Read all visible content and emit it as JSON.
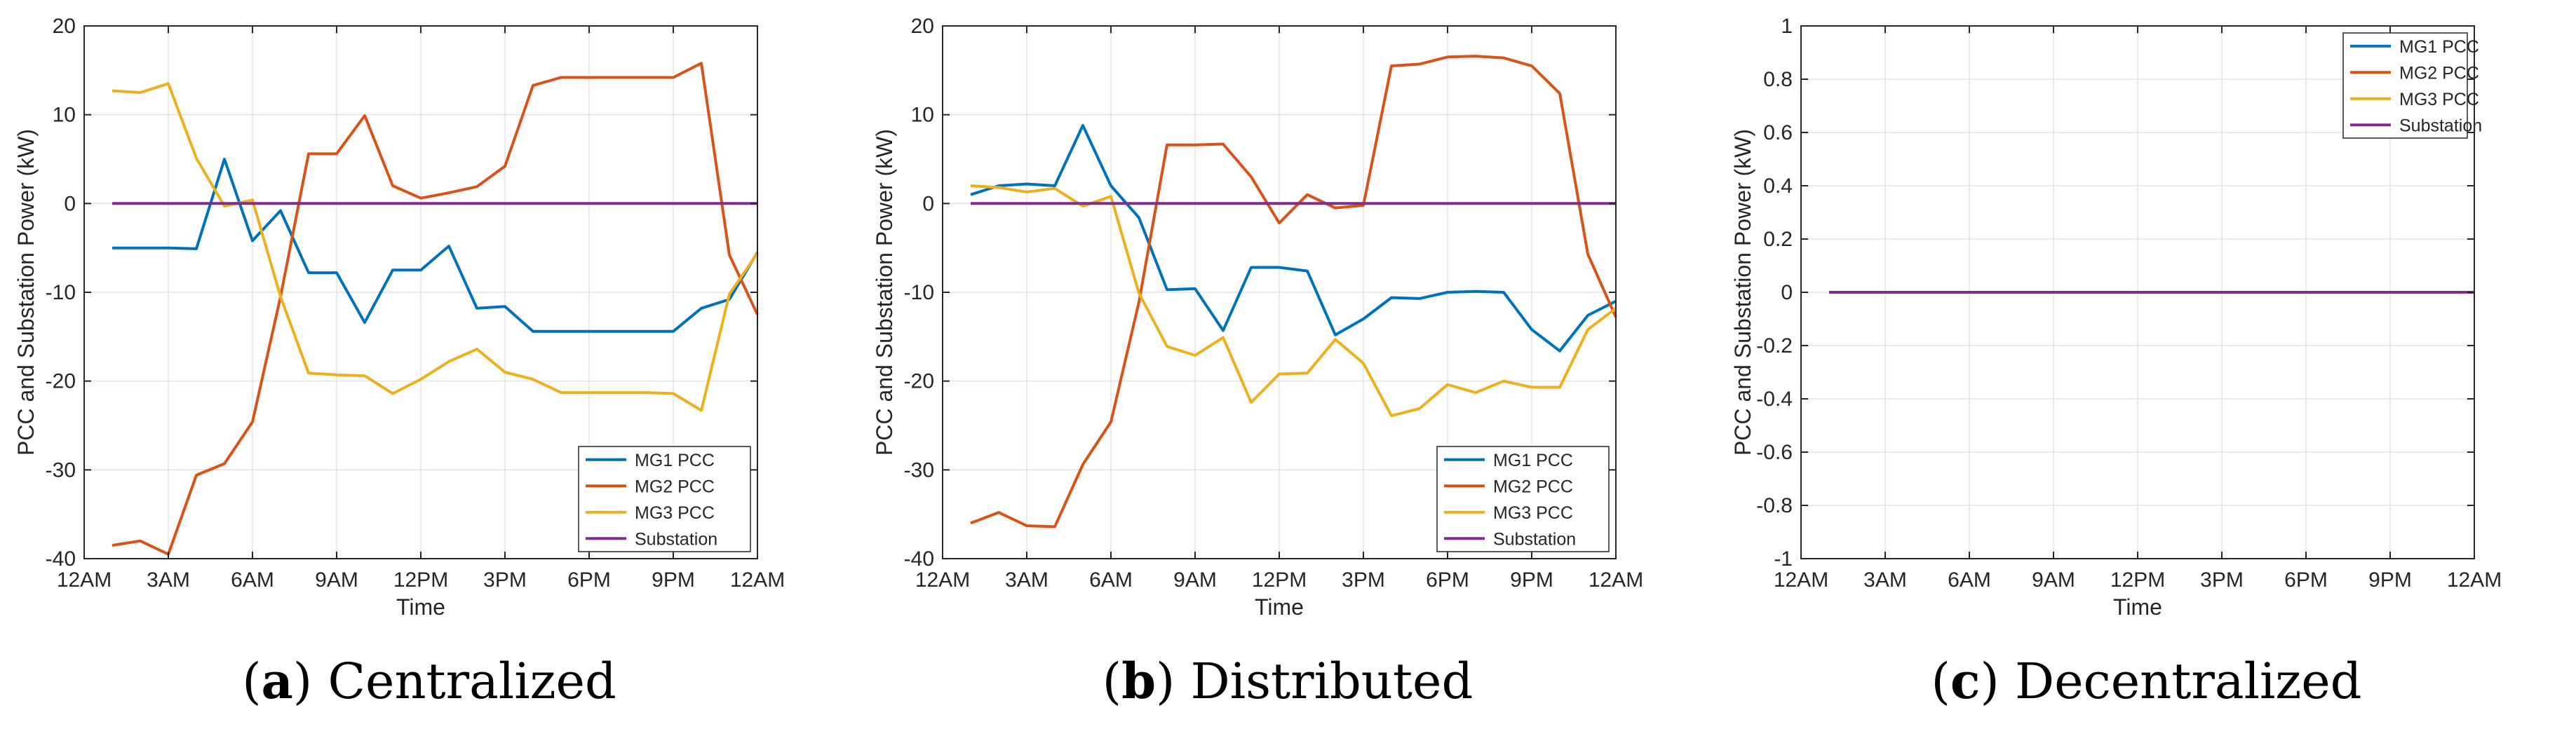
{
  "colors": {
    "mg1": "#0072BD",
    "mg2": "#D95319",
    "mg3": "#EDB120",
    "substation": "#7E2F8E",
    "grid": "#e3e3e3",
    "axis": "#262626"
  },
  "chart_data": [
    {
      "type": "line",
      "caption_letter": "a",
      "caption_text": " Centralized",
      "xlabel": "Time",
      "ylabel": "PCC and Substation Power (kW)",
      "ylim": [
        -40,
        20
      ],
      "yticks": [
        -40,
        -30,
        -20,
        -10,
        0,
        10,
        20
      ],
      "ytick_labels": [
        "-40",
        "-30",
        "-20",
        "-10",
        "0",
        "10",
        "20"
      ],
      "xlim": [
        0,
        24
      ],
      "xticks": [
        0,
        3,
        6,
        9,
        12,
        15,
        18,
        21,
        24
      ],
      "xtick_labels": [
        "12AM",
        "3AM",
        "6AM",
        "9AM",
        "12PM",
        "3PM",
        "6PM",
        "9PM",
        "12AM"
      ],
      "grid": true,
      "legend_position": "bottom-right",
      "x": [
        1,
        2,
        3,
        4,
        5,
        6,
        7,
        8,
        9,
        10,
        11,
        12,
        13,
        14,
        15,
        16,
        17,
        18,
        19,
        20,
        21,
        22,
        23,
        24
      ],
      "series": [
        {
          "name": "MG1 PCC",
          "color_key": "mg1",
          "values": [
            -5,
            -5,
            -5,
            -5.1,
            5,
            -4.2,
            -0.8,
            -7.8,
            -7.8,
            -13.4,
            -7.5,
            -7.5,
            -4.8,
            -11.8,
            -11.6,
            -14.4,
            -14.4,
            -14.4,
            -14.4,
            -14.4,
            -14.4,
            -11.8,
            -10.8,
            -5.5
          ]
        },
        {
          "name": "MG2 PCC",
          "color_key": "mg2",
          "values": [
            -38.5,
            -38,
            -39.5,
            -30.6,
            -29.3,
            -24.6,
            -10.5,
            5.6,
            5.6,
            9.9,
            2,
            0.6,
            1.2,
            1.9,
            4.2,
            13.3,
            14.2,
            14.2,
            14.2,
            14.2,
            14.2,
            15.8,
            -5.8,
            -12.5
          ]
        },
        {
          "name": "MG3 PCC",
          "color_key": "mg3",
          "values": [
            12.7,
            12.5,
            13.5,
            5.1,
            -0.3,
            0.4,
            -10.5,
            -19.1,
            -19.3,
            -19.4,
            -21.4,
            -19.8,
            -17.8,
            -16.4,
            -19,
            -19.8,
            -21.3,
            -21.3,
            -21.3,
            -21.3,
            -21.4,
            -23.3,
            -10.2,
            -5.6
          ]
        },
        {
          "name": "Substation",
          "color_key": "substation",
          "values": [
            0,
            0,
            0,
            0,
            0,
            0,
            0,
            0,
            0,
            0,
            0,
            0,
            0,
            0,
            0,
            0,
            0,
            0,
            0,
            0,
            0,
            0,
            0,
            0
          ]
        }
      ]
    },
    {
      "type": "line",
      "caption_letter": "b",
      "caption_text": " Distributed",
      "xlabel": "Time",
      "ylabel": "PCC and Substation Power (kW)",
      "ylim": [
        -40,
        20
      ],
      "yticks": [
        -40,
        -30,
        -20,
        -10,
        0,
        10,
        20
      ],
      "ytick_labels": [
        "-40",
        "-30",
        "-20",
        "-10",
        "0",
        "10",
        "20"
      ],
      "xlim": [
        0,
        24
      ],
      "xticks": [
        0,
        3,
        6,
        9,
        12,
        15,
        18,
        21,
        24
      ],
      "xtick_labels": [
        "12AM",
        "3AM",
        "6AM",
        "9AM",
        "12PM",
        "3PM",
        "6PM",
        "9PM",
        "12AM"
      ],
      "grid": true,
      "legend_position": "bottom-right",
      "x": [
        1,
        2,
        3,
        4,
        5,
        6,
        7,
        8,
        9,
        10,
        11,
        12,
        13,
        14,
        15,
        16,
        17,
        18,
        19,
        20,
        21,
        22,
        23,
        24
      ],
      "series": [
        {
          "name": "MG1 PCC",
          "color_key": "mg1",
          "values": [
            1,
            2,
            2.2,
            2,
            8.8,
            2,
            -1.6,
            -9.7,
            -9.6,
            -14.3,
            -7.2,
            -7.2,
            -7.6,
            -14.8,
            -13,
            -10.6,
            -10.7,
            -10,
            -9.9,
            -10,
            -14.2,
            -16.6,
            -12.6,
            -11
          ]
        },
        {
          "name": "MG2 PCC",
          "color_key": "mg2",
          "values": [
            -36,
            -34.8,
            -36.3,
            -36.4,
            -29.4,
            -24.6,
            -11.1,
            6.6,
            6.6,
            6.7,
            3,
            -2.2,
            1,
            -0.5,
            -0.2,
            15.5,
            15.7,
            16.5,
            16.6,
            16.4,
            15.5,
            12.4,
            -5.7,
            -12.8
          ]
        },
        {
          "name": "MG3 PCC",
          "color_key": "mg3",
          "values": [
            2,
            1.8,
            1.3,
            1.7,
            -0.3,
            0.8,
            -10.1,
            -16.1,
            -17.1,
            -15.1,
            -22.4,
            -19.2,
            -19.1,
            -15.3,
            -18,
            -23.9,
            -23.1,
            -20.4,
            -21.3,
            -20,
            -20.7,
            -20.7,
            -14.2,
            -11.8
          ]
        },
        {
          "name": "Substation",
          "color_key": "substation",
          "values": [
            0,
            0,
            0,
            0,
            0,
            0,
            0,
            0,
            0,
            0,
            0,
            0,
            0,
            0,
            0,
            0,
            0,
            0,
            0,
            0,
            0,
            0,
            0,
            0
          ]
        }
      ]
    },
    {
      "type": "line",
      "caption_letter": "c",
      "caption_text": " Decentralized",
      "xlabel": "Time",
      "ylabel": "PCC and Substation Power (kW)",
      "ylim": [
        -1,
        1
      ],
      "yticks": [
        -1,
        -0.8,
        -0.6,
        -0.4,
        -0.2,
        0,
        0.2,
        0.4,
        0.6,
        0.8,
        1
      ],
      "ytick_labels": [
        "-1",
        "-0.8",
        "-0.6",
        "-0.4",
        "-0.2",
        "0",
        "0.2",
        "0.4",
        "0.6",
        "0.8",
        "1"
      ],
      "xlim": [
        0,
        24
      ],
      "xticks": [
        0,
        3,
        6,
        9,
        12,
        15,
        18,
        21,
        24
      ],
      "xtick_labels": [
        "12AM",
        "3AM",
        "6AM",
        "9AM",
        "12PM",
        "3PM",
        "6PM",
        "9PM",
        "12AM"
      ],
      "grid": true,
      "legend_position": "top-right",
      "x": [
        1,
        2,
        3,
        4,
        5,
        6,
        7,
        8,
        9,
        10,
        11,
        12,
        13,
        14,
        15,
        16,
        17,
        18,
        19,
        20,
        21,
        22,
        23,
        24
      ],
      "series": [
        {
          "name": "MG1 PCC",
          "color_key": "mg1",
          "values": [
            0,
            0,
            0,
            0,
            0,
            0,
            0,
            0,
            0,
            0,
            0,
            0,
            0,
            0,
            0,
            0,
            0,
            0,
            0,
            0,
            0,
            0,
            0,
            0
          ]
        },
        {
          "name": "MG2 PCC",
          "color_key": "mg2",
          "values": [
            0,
            0,
            0,
            0,
            0,
            0,
            0,
            0,
            0,
            0,
            0,
            0,
            0,
            0,
            0,
            0,
            0,
            0,
            0,
            0,
            0,
            0,
            0,
            0
          ]
        },
        {
          "name": "MG3 PCC",
          "color_key": "mg3",
          "values": [
            0,
            0,
            0,
            0,
            0,
            0,
            0,
            0,
            0,
            0,
            0,
            0,
            0,
            0,
            0,
            0,
            0,
            0,
            0,
            0,
            0,
            0,
            0,
            0
          ]
        },
        {
          "name": "Substation",
          "color_key": "substation",
          "values": [
            0,
            0,
            0,
            0,
            0,
            0,
            0,
            0,
            0,
            0,
            0,
            0,
            0,
            0,
            0,
            0,
            0,
            0,
            0,
            0,
            0,
            0,
            0,
            0
          ]
        }
      ]
    }
  ]
}
